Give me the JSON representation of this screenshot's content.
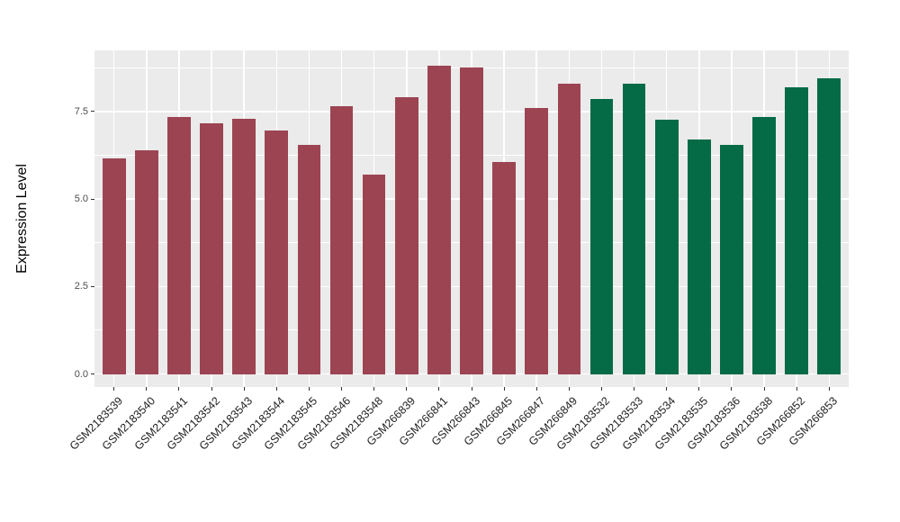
{
  "chart_data": {
    "type": "bar",
    "title": "",
    "xlabel": "",
    "ylabel": "Expression Level",
    "legend": "none",
    "grid": true,
    "panel_background": "#EBEBEB",
    "gridline_color": "#FFFFFF",
    "group_colors": {
      "group_1": "#9C4452",
      "group_2": "#046B46"
    },
    "categories": [
      "GSM2183539",
      "GSM2183540",
      "GSM2183541",
      "GSM2183542",
      "GSM2183543",
      "GSM2183544",
      "GSM2183545",
      "GSM2183546",
      "GSM2183548",
      "GSM266839",
      "GSM266841",
      "GSM266843",
      "GSM266845",
      "GSM266847",
      "GSM266849",
      "GSM2183532",
      "GSM2183533",
      "GSM2183534",
      "GSM2183535",
      "GSM2183536",
      "GSM2183538",
      "GSM266852",
      "GSM266853"
    ],
    "values": [
      6.15,
      6.4,
      7.35,
      7.15,
      7.3,
      6.95,
      6.55,
      7.65,
      5.7,
      7.9,
      8.8,
      8.75,
      6.05,
      7.6,
      8.3,
      7.85,
      8.3,
      7.25,
      6.7,
      6.55,
      7.35,
      8.2,
      8.45
    ],
    "bar_colors": [
      "#9C4452",
      "#9C4452",
      "#9C4452",
      "#9C4452",
      "#9C4452",
      "#9C4452",
      "#9C4452",
      "#9C4452",
      "#9C4452",
      "#9C4452",
      "#9C4452",
      "#9C4452",
      "#9C4452",
      "#9C4452",
      "#9C4452",
      "#046B46",
      "#046B46",
      "#046B46",
      "#046B46",
      "#046B46",
      "#046B46",
      "#046B46",
      "#046B46"
    ],
    "ytick_values": [
      0.0,
      2.5,
      5.0,
      7.5
    ],
    "ytick_labels": [
      "0.0",
      "2.5",
      "5.0",
      "7.5"
    ],
    "minor_gridlines": [
      1.25,
      3.75,
      6.25,
      8.75
    ],
    "ylim": [
      0,
      9.2
    ]
  }
}
